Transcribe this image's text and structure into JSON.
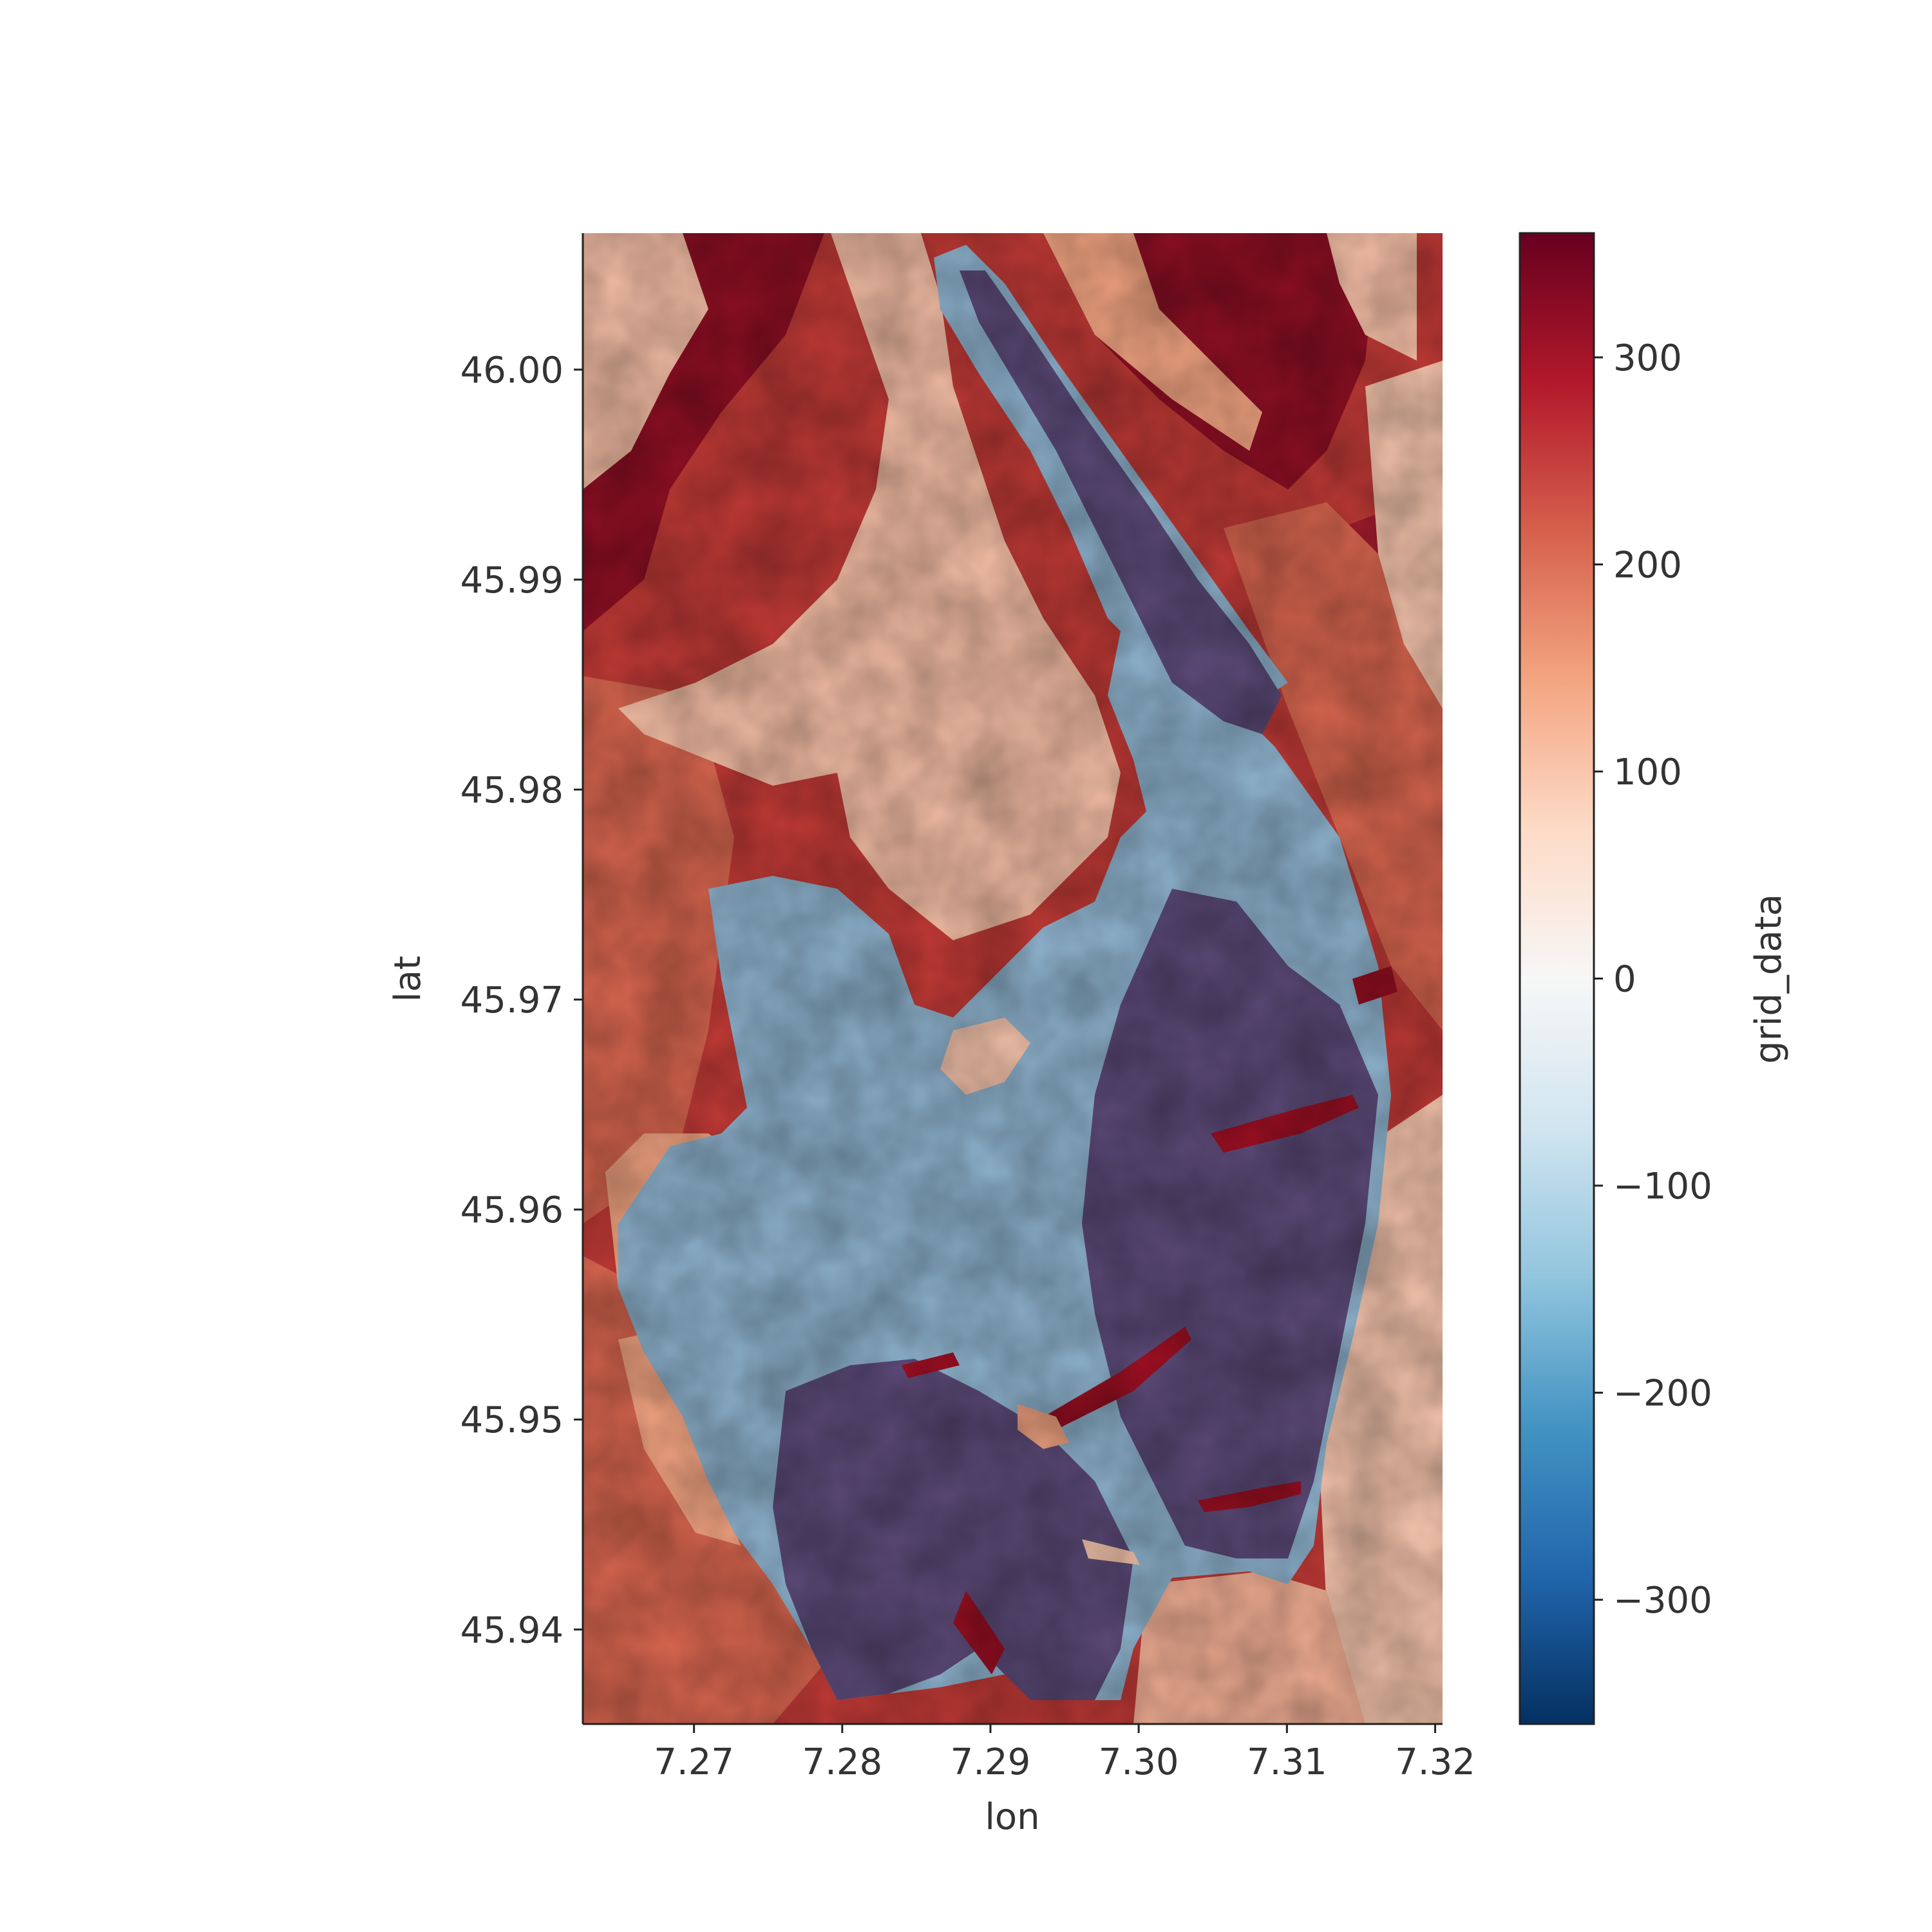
{
  "chart_data": {
    "type": "heatmap",
    "title": "",
    "xlabel": "lon",
    "ylabel": "lat",
    "x_ticks": [
      "7.27",
      "7.28",
      "7.29",
      "7.30",
      "7.31",
      "7.32"
    ],
    "y_ticks": [
      "46.00",
      "45.99",
      "45.98",
      "45.97",
      "45.96",
      "45.95",
      "45.94"
    ],
    "xlim": [
      7.2625,
      7.3205
    ],
    "ylim": [
      45.9355,
      46.0065
    ],
    "colorbar": {
      "label": "grid_data",
      "ticks": [
        "300",
        "200",
        "100",
        "0",
        "−100",
        "−200",
        "−300"
      ],
      "range": [
        -360,
        360
      ],
      "colormap": "RdBu_r"
    },
    "colors": {
      "dark_red": "#67001f",
      "red": "#b2182b",
      "salmon": "#d6604d",
      "light_salmon": "#f4a582",
      "pale": "#fddbc7",
      "white": "#f7f7f7",
      "pale_blue": "#d1e5f0",
      "light_blue": "#92c5de",
      "blue": "#4393c3",
      "mid_blue": "#2166ac",
      "dark_blue": "#053061",
      "glacier_light": "#8fb4cf",
      "glacier_dark": "#5a4a78"
    }
  }
}
